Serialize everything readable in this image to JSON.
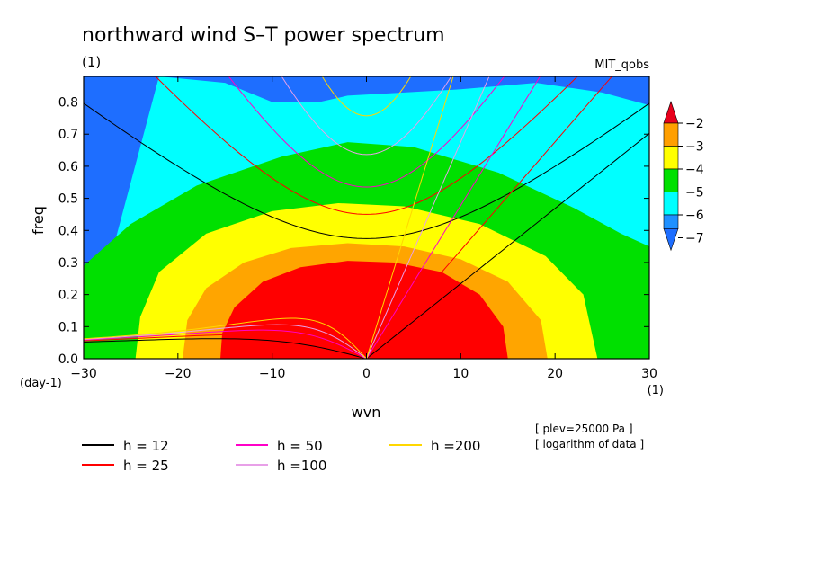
{
  "chart_data": {
    "type": "heatmap",
    "title": "northward wind S–T power spectrum",
    "subtitle_left": "(1)",
    "subtitle_right": "MIT_qobs",
    "xlabel": "wvn",
    "ylabel": "freq",
    "x_unit": "(1)",
    "y_unit": "(day-1)",
    "xlim": [
      -30,
      30
    ],
    "ylim": [
      0,
      0.88
    ],
    "x_ticks": [
      -30,
      -20,
      -10,
      0,
      10,
      20,
      30
    ],
    "x_tick_labels": [
      "−30",
      "−20",
      "−10",
      "0",
      "10",
      "20",
      "30"
    ],
    "y_ticks": [
      0.0,
      0.1,
      0.2,
      0.3,
      0.4,
      0.5,
      0.6,
      0.7,
      0.8
    ],
    "y_tick_labels": [
      "0.0",
      "0.1",
      "0.2",
      "0.3",
      "0.4",
      "0.5",
      "0.6",
      "0.7",
      "0.8"
    ],
    "colorbar": {
      "levels": [
        -2,
        -3,
        -4,
        -5,
        -6,
        -7
      ],
      "labels": [
        "−2",
        "−3",
        "−4",
        "−5",
        "−6",
        "−7"
      ],
      "colors": [
        "#e8001c",
        "#ff9f00",
        "#ffff00",
        "#00e000",
        "#00ffff",
        "#1e90ff"
      ],
      "over_color": "#e8001c",
      "under_color": "#1e6eff"
    },
    "contours": [
      {
        "level": -2,
        "color": "#ff0000",
        "points": [
          [
            -15.5,
            0
          ],
          [
            -15.3,
            0.08
          ],
          [
            -14,
            0.16
          ],
          [
            -11,
            0.24
          ],
          [
            -7,
            0.285
          ],
          [
            -2,
            0.305
          ],
          [
            3,
            0.3
          ],
          [
            8,
            0.27
          ],
          [
            12,
            0.2
          ],
          [
            14.5,
            0.1
          ],
          [
            15,
            0
          ]
        ]
      },
      {
        "level": -3,
        "color": "#ffa500",
        "points": [
          [
            -19.5,
            0
          ],
          [
            -19,
            0.12
          ],
          [
            -17,
            0.22
          ],
          [
            -13,
            0.3
          ],
          [
            -8,
            0.345
          ],
          [
            -2,
            0.36
          ],
          [
            4,
            0.35
          ],
          [
            10,
            0.31
          ],
          [
            15,
            0.24
          ],
          [
            18.5,
            0.12
          ],
          [
            19.2,
            0
          ]
        ]
      },
      {
        "level": -4,
        "color": "#ffff00",
        "points": [
          [
            -24.5,
            0
          ],
          [
            -24,
            0.13
          ],
          [
            -22,
            0.27
          ],
          [
            -17,
            0.39
          ],
          [
            -10,
            0.46
          ],
          [
            -3,
            0.485
          ],
          [
            4,
            0.475
          ],
          [
            12,
            0.42
          ],
          [
            19,
            0.32
          ],
          [
            23,
            0.2
          ],
          [
            24.5,
            0
          ]
        ]
      },
      {
        "level": -5,
        "color": "#00e000",
        "points": [
          [
            -30,
            0.29
          ],
          [
            -25,
            0.42
          ],
          [
            -18,
            0.54
          ],
          [
            -9,
            0.63
          ],
          [
            -2,
            0.675
          ],
          [
            5,
            0.66
          ],
          [
            14,
            0.58
          ],
          [
            22,
            0.47
          ],
          [
            27,
            0.39
          ],
          [
            30,
            0.35
          ]
        ]
      },
      {
        "level": -6,
        "color": "#00ffff",
        "points": [
          [
            -22,
            0.88
          ],
          [
            -15,
            0.86
          ],
          [
            -10,
            0.8
          ],
          [
            -5,
            0.8
          ],
          [
            -2,
            0.82
          ],
          [
            4,
            0.83
          ],
          [
            10,
            0.84
          ],
          [
            18,
            0.86
          ],
          [
            25,
            0.83
          ],
          [
            30,
            0.79
          ]
        ]
      }
    ],
    "series": [
      {
        "name": "h = 12",
        "label": "h = 12",
        "h": 12,
        "color": "#000000"
      },
      {
        "name": "h = 25",
        "label": "h = 25",
        "h": 25,
        "color": "#ff0000"
      },
      {
        "name": "h = 50",
        "label": "h = 50",
        "h": 50,
        "color": "#ff00c8"
      },
      {
        "name": "h =100",
        "label": "h =100",
        "h": 100,
        "color": "#e8a0e8"
      },
      {
        "name": "h =200",
        "label": "h =200",
        "h": 200,
        "color": "#ffd700"
      }
    ],
    "annotations": [
      "[ plev=25000 Pa ]",
      "[ logarithm of data ]"
    ],
    "legend_placement": "bottom",
    "grid": false
  }
}
